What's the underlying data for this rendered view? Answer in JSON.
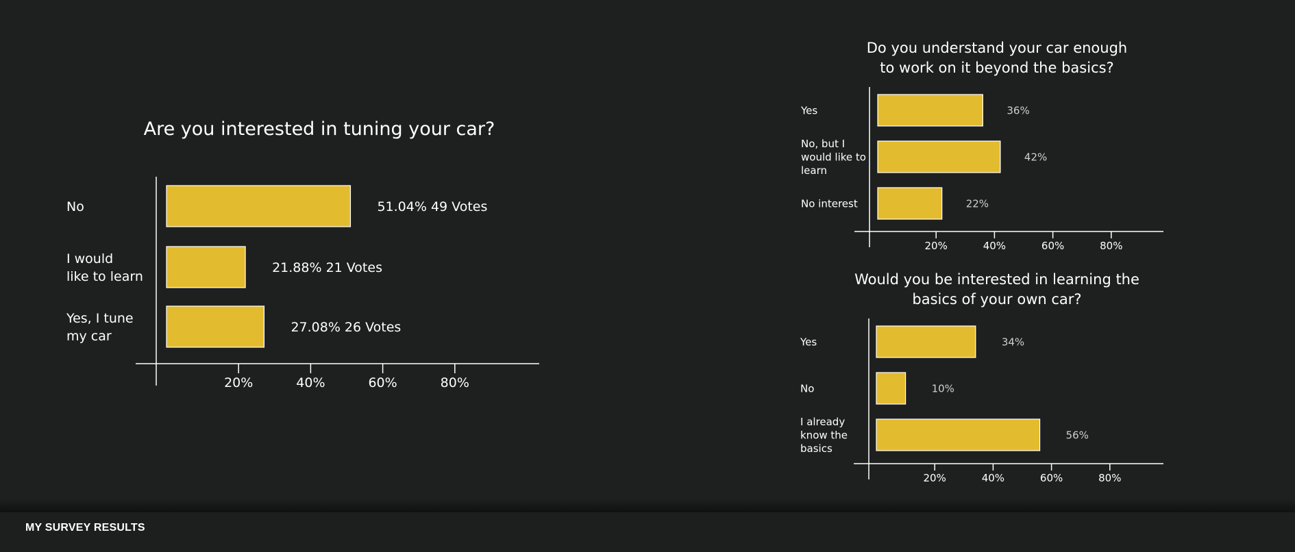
{
  "footer": {
    "title": "MY SURVEY RESULTS"
  },
  "colors": {
    "background": "#1e1f1f",
    "bar_fill": "#e3bb2e",
    "bar_stroke": "#ffffff",
    "axis": "#ffffff",
    "text": "#ffffff",
    "value_text": "#cfcfcf"
  },
  "chart_data": [
    {
      "type": "bar",
      "orientation": "horizontal",
      "title": "Are you interested in tuning your car?",
      "categories": [
        "No",
        "I would like to learn",
        "Yes, I tune my car"
      ],
      "category_lines": [
        [
          "No"
        ],
        [
          "I would",
          "like to learn"
        ],
        [
          "Yes, I tune",
          "my car"
        ]
      ],
      "values": [
        51.04,
        21.88,
        27.08
      ],
      "votes": [
        49,
        21,
        26
      ],
      "value_labels": [
        "51.04%  49 Votes",
        "21.88%  21 Votes",
        "27.08%  26 Votes"
      ],
      "xticks": [
        "20%",
        "40%",
        "60%",
        "80%"
      ],
      "xlim": [
        0,
        100
      ],
      "xlabel": "",
      "ylabel": "",
      "grid": false,
      "legend": "none"
    },
    {
      "type": "bar",
      "orientation": "horizontal",
      "title": "Do you understand your car enough to work on it beyond the basics?",
      "title_lines": [
        "Do you understand your car enough",
        "to work on it beyond the basics?"
      ],
      "categories": [
        "Yes",
        "No, but I would like to learn",
        "No interest"
      ],
      "category_lines": [
        [
          "Yes"
        ],
        [
          "No, but I",
          "would like to",
          "learn"
        ],
        [
          "No interest"
        ]
      ],
      "values": [
        36,
        42,
        22
      ],
      "value_labels": [
        "36%",
        "42%",
        "22%"
      ],
      "xticks": [
        "20%",
        "40%",
        "60%",
        "80%"
      ],
      "xlim": [
        0,
        100
      ],
      "xlabel": "",
      "ylabel": "",
      "grid": false,
      "legend": "none"
    },
    {
      "type": "bar",
      "orientation": "horizontal",
      "title": "Would you be interested in learning the basics of your own car?",
      "title_lines": [
        "Would you be interested in learning the",
        "basics of your own car?"
      ],
      "categories": [
        "Yes",
        "No",
        "I already know the basics"
      ],
      "category_lines": [
        [
          "Yes"
        ],
        [
          "No"
        ],
        [
          "I already",
          "know the",
          "basics"
        ]
      ],
      "values": [
        34,
        10,
        56
      ],
      "value_labels": [
        "34%",
        "10%",
        "56%"
      ],
      "xticks": [
        "20%",
        "40%",
        "60%",
        "80%"
      ],
      "xlim": [
        0,
        100
      ],
      "xlabel": "",
      "ylabel": "",
      "grid": false,
      "legend": "none"
    }
  ]
}
